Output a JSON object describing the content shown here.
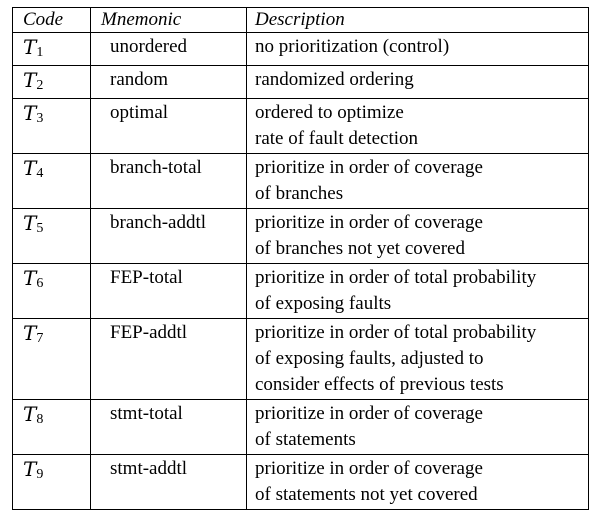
{
  "headers": {
    "code": "Code",
    "mnemonic": "Mnemonic",
    "description": "Description"
  },
  "rows": [
    {
      "code_letter": "T",
      "code_index": "1",
      "mnemonic": "unordered",
      "description": [
        "no prioritization (control)"
      ]
    },
    {
      "code_letter": "T",
      "code_index": "2",
      "mnemonic": "random",
      "description": [
        "randomized ordering"
      ]
    },
    {
      "code_letter": "T",
      "code_index": "3",
      "mnemonic": "optimal",
      "description": [
        "ordered to optimize",
        "rate of fault detection"
      ]
    },
    {
      "code_letter": "T",
      "code_index": "4",
      "mnemonic": "branch-total",
      "description": [
        "prioritize in order of coverage",
        "of branches"
      ]
    },
    {
      "code_letter": "T",
      "code_index": "5",
      "mnemonic": "branch-addtl",
      "description": [
        "prioritize in order of coverage",
        "of branches not yet covered"
      ]
    },
    {
      "code_letter": "T",
      "code_index": "6",
      "mnemonic": "FEP-total",
      "description": [
        "prioritize in order of total probability",
        "of exposing faults"
      ]
    },
    {
      "code_letter": "T",
      "code_index": "7",
      "mnemonic": "FEP-addtl",
      "description": [
        "prioritize in order of total probability",
        "of exposing faults, adjusted to",
        "consider effects of previous tests"
      ]
    },
    {
      "code_letter": "T",
      "code_index": "8",
      "mnemonic": "stmt-total",
      "description": [
        "prioritize in order of coverage",
        "of statements"
      ]
    },
    {
      "code_letter": "T",
      "code_index": "9",
      "mnemonic": "stmt-addtl",
      "description": [
        "prioritize in order of coverage",
        "of statements not yet covered"
      ]
    }
  ]
}
